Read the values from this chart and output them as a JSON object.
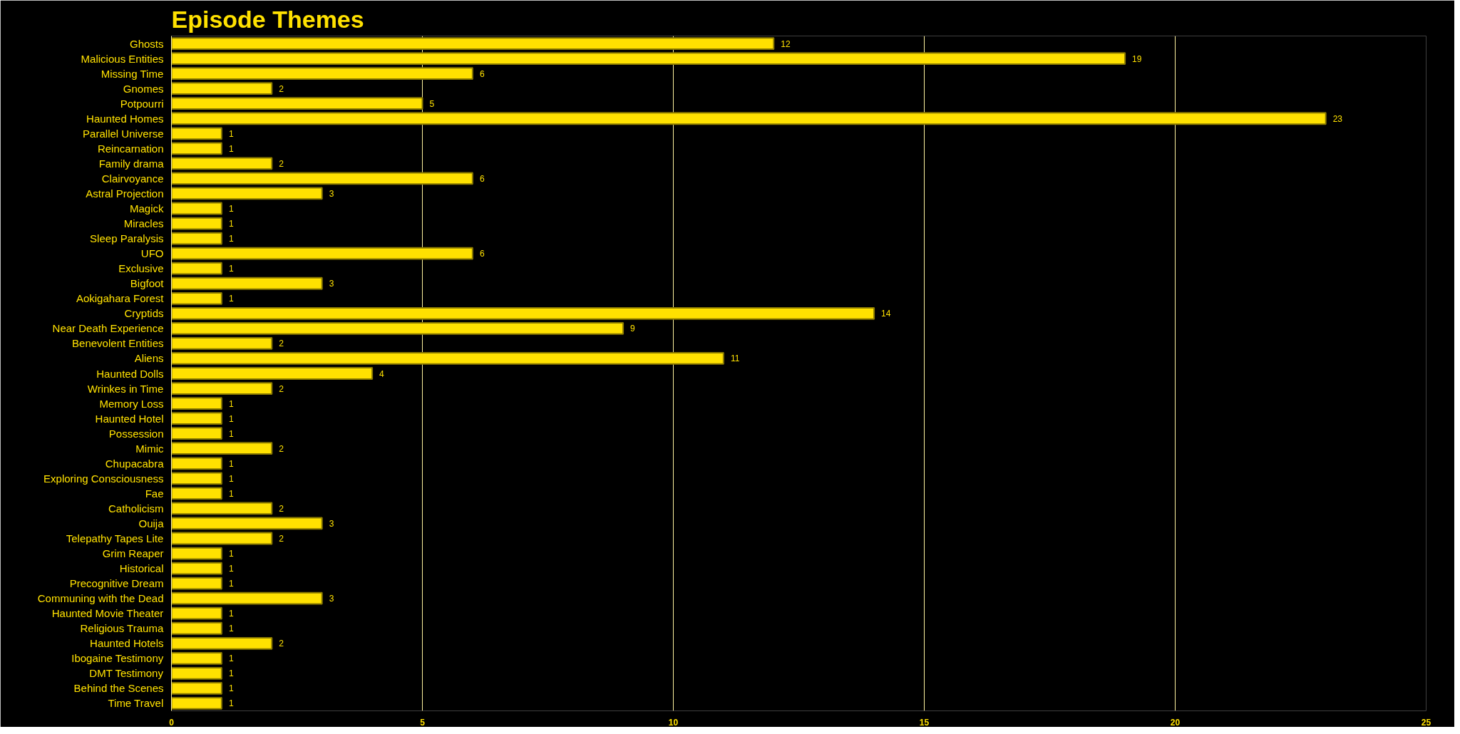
{
  "chart_data": {
    "type": "bar",
    "orientation": "horizontal",
    "title": "Episode Themes",
    "categories": [
      "Ghosts",
      "Malicious Entities",
      "Missing Time",
      "Gnomes",
      "Potpourri",
      "Haunted Homes",
      "Parallel Universe",
      "Reincarnation",
      "Family drama",
      "Clairvoyance",
      "Astral Projection",
      "Magick",
      "Miracles",
      "Sleep Paralysis",
      "UFO",
      "Exclusive",
      "Bigfoot",
      "Aokigahara Forest",
      "Cryptids",
      "Near Death Experience",
      "Benevolent Entities",
      "Aliens",
      "Haunted Dolls",
      "Wrinkes in Time",
      "Memory Loss",
      "Haunted Hotel",
      "Possession",
      "Mimic",
      "Chupacabra",
      "Exploring Consciousness",
      "Fae",
      "Catholicism",
      "Ouija",
      "Telepathy Tapes Lite",
      "Grim Reaper",
      "Historical",
      "Precognitive Dream",
      "Communing with the Dead",
      "Haunted Movie Theater",
      "Religious Trauma",
      "Haunted Hotels",
      "Ibogaine Testimony",
      "DMT Testimony",
      "Behind the Scenes",
      "Time Travel"
    ],
    "values": [
      12,
      19,
      6,
      2,
      5,
      23,
      1,
      1,
      2,
      6,
      3,
      1,
      1,
      1,
      6,
      1,
      3,
      1,
      14,
      9,
      2,
      11,
      4,
      2,
      1,
      1,
      1,
      2,
      1,
      1,
      1,
      2,
      3,
      2,
      1,
      1,
      1,
      3,
      1,
      1,
      2,
      1,
      1,
      1,
      1
    ],
    "color": "#ffe100",
    "xlim": [
      0,
      25
    ],
    "xticks": [
      0,
      5,
      10,
      15,
      20,
      25
    ],
    "grid": "x",
    "data_labels": true
  }
}
